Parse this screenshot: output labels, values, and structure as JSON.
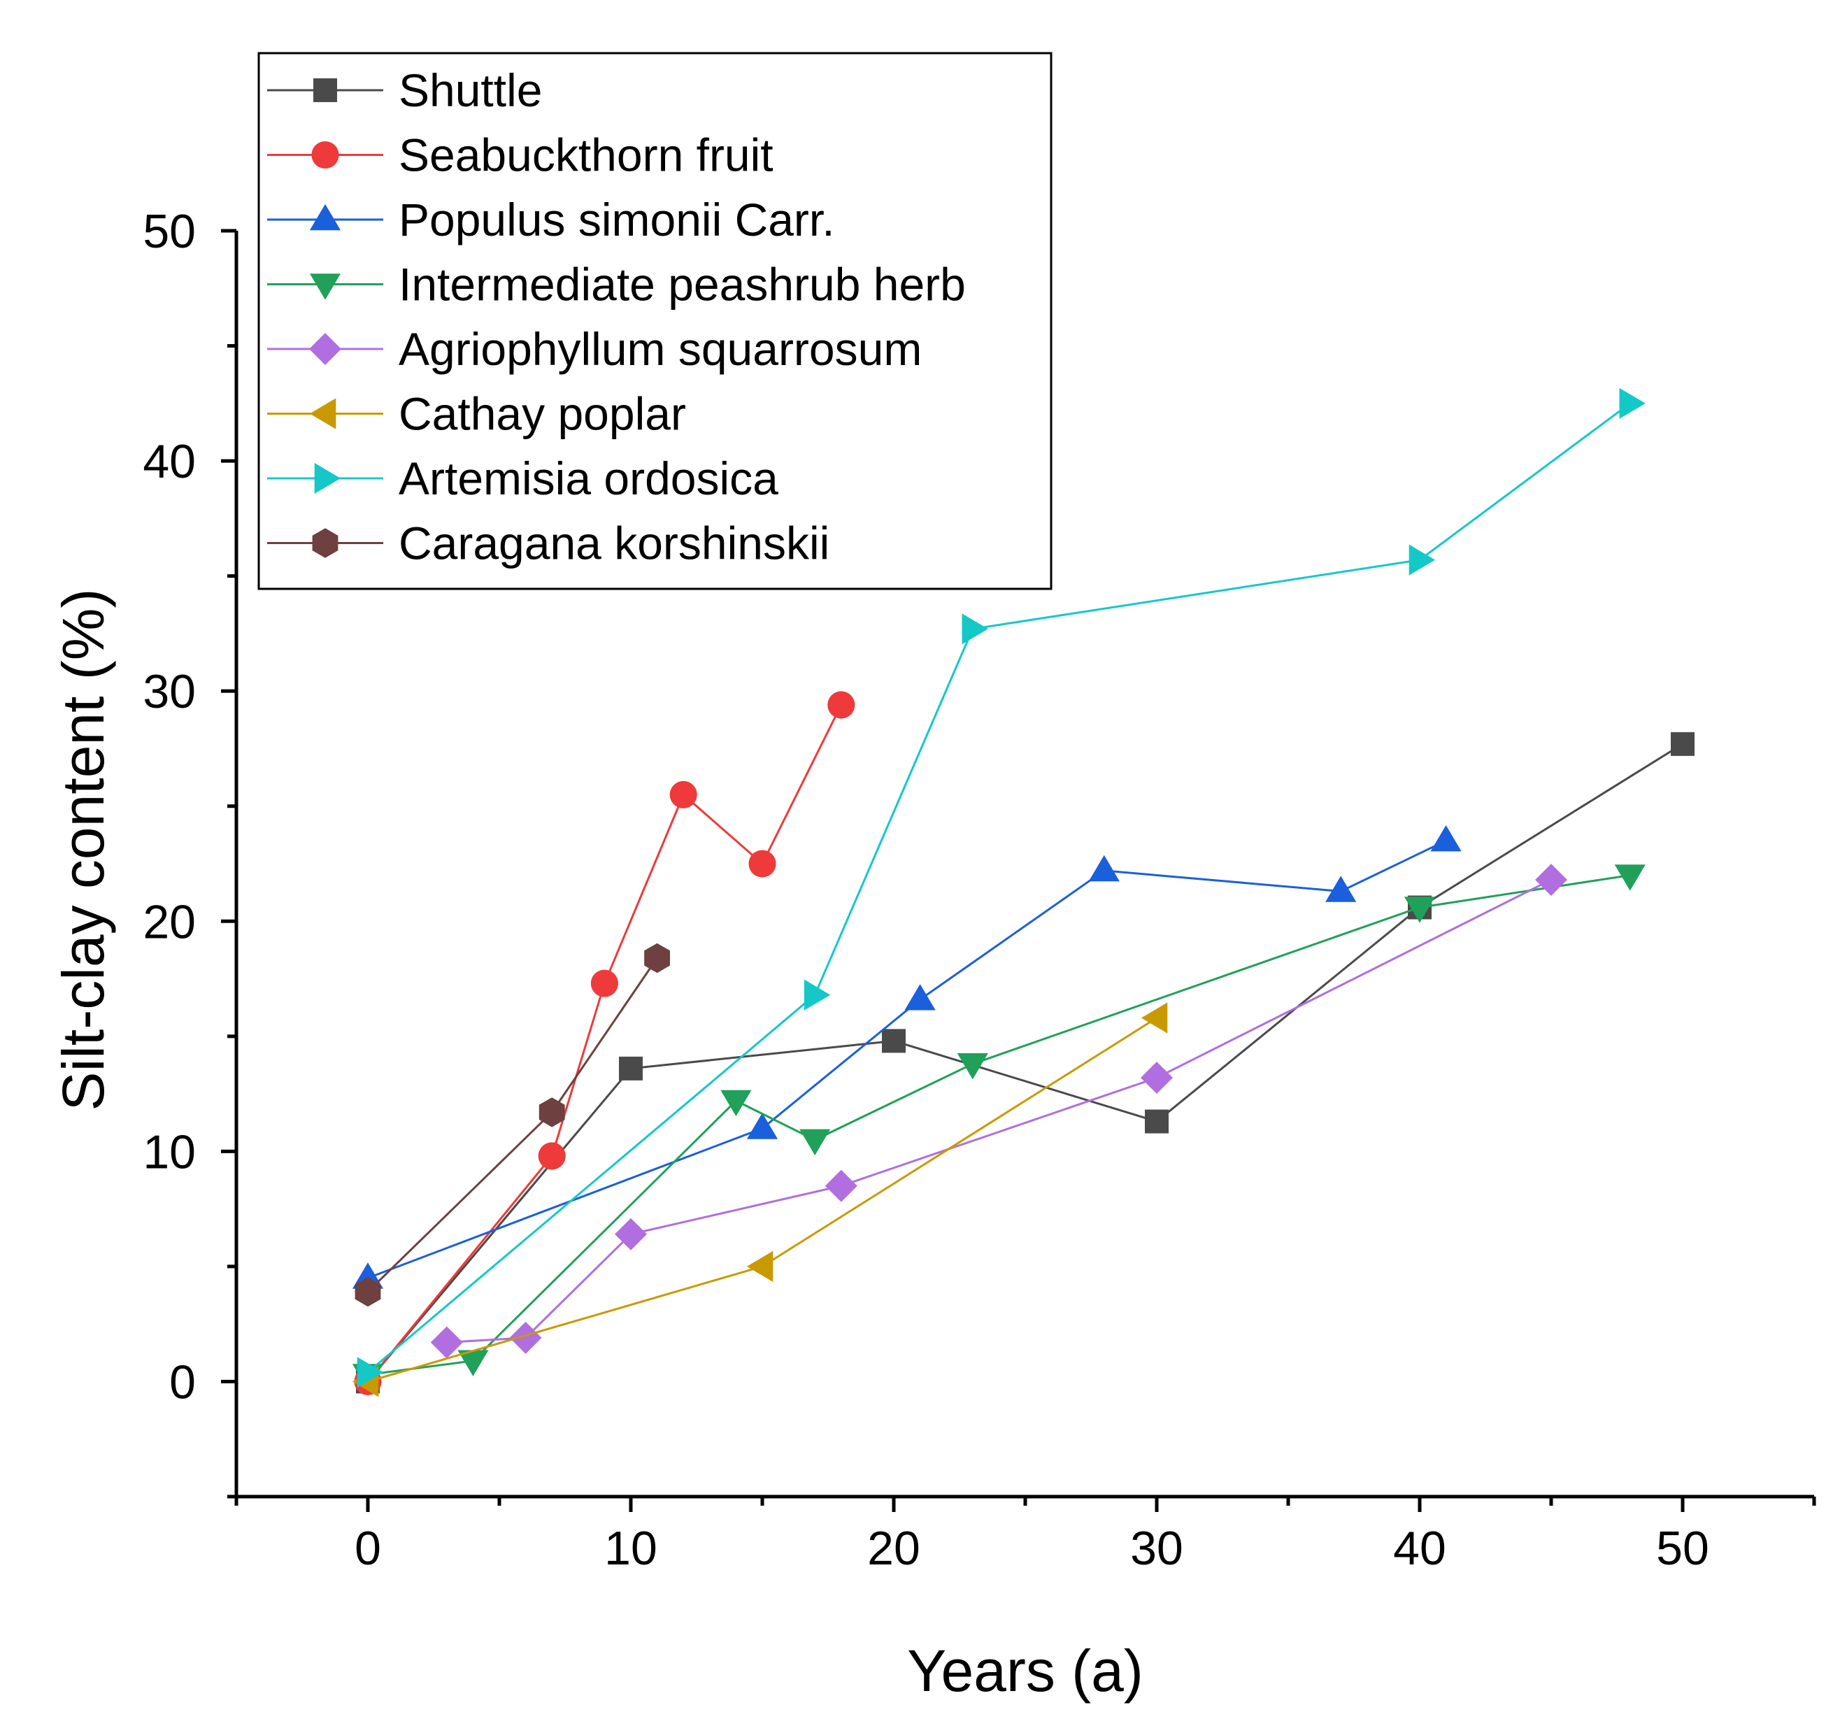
{
  "chart_data": {
    "type": "line",
    "title": "",
    "xlabel": "Years (a)",
    "ylabel": "Silt-clay content (%)",
    "xlim": [
      -5,
      55
    ],
    "ylim": [
      -5,
      50
    ],
    "xticks": [
      0,
      10,
      20,
      30,
      40,
      50
    ],
    "yticks": [
      0,
      10,
      20,
      30,
      40,
      50
    ],
    "grid": false,
    "legend_position": "top-left",
    "series": [
      {
        "name": "Shuttle",
        "color": "#4a4a4a",
        "marker": "square",
        "x": [
          0,
          10,
          20,
          30,
          40,
          50
        ],
        "y": [
          0,
          13.6,
          14.8,
          11.3,
          20.6,
          27.7
        ]
      },
      {
        "name": "Seabuckthorn fruit",
        "color": "#ee3a3a",
        "marker": "circle",
        "x": [
          0,
          7,
          9,
          12,
          15,
          18
        ],
        "y": [
          0,
          9.8,
          17.3,
          25.5,
          22.5,
          29.4
        ]
      },
      {
        "name": "Populus simonii Carr.",
        "color": "#1a5fdc",
        "marker": "triangle-up",
        "x": [
          0,
          15,
          21,
          28,
          37,
          41
        ],
        "y": [
          4.5,
          11.0,
          16.6,
          22.2,
          21.3,
          23.5
        ]
      },
      {
        "name": "Intermediate peashrub herb",
        "color": "#21a05a",
        "marker": "triangle-down",
        "x": [
          0,
          4,
          14,
          17,
          23,
          40,
          48
        ],
        "y": [
          0.3,
          0.9,
          12.2,
          10.5,
          13.8,
          20.6,
          22.0
        ]
      },
      {
        "name": "Agriophyllum squarrosum",
        "color": "#b06ee0",
        "marker": "diamond",
        "x": [
          3,
          6,
          10,
          18,
          30,
          45
        ],
        "y": [
          1.7,
          1.9,
          6.4,
          8.5,
          13.2,
          21.8
        ]
      },
      {
        "name": "Cathay poplar",
        "color": "#c99a00",
        "marker": "triangle-left",
        "x": [
          0,
          15,
          30
        ],
        "y": [
          0,
          5.0,
          15.8
        ]
      },
      {
        "name": "Artemisia ordosica",
        "color": "#15c8c8",
        "marker": "triangle-right",
        "x": [
          0,
          17,
          23,
          40,
          48
        ],
        "y": [
          0.4,
          16.8,
          32.7,
          35.7,
          42.5
        ]
      },
      {
        "name": "Caragana korshinskii",
        "color": "#6e4040",
        "marker": "hexagon",
        "x": [
          0,
          7,
          11
        ],
        "y": [
          3.9,
          11.7,
          18.4
        ]
      }
    ]
  }
}
